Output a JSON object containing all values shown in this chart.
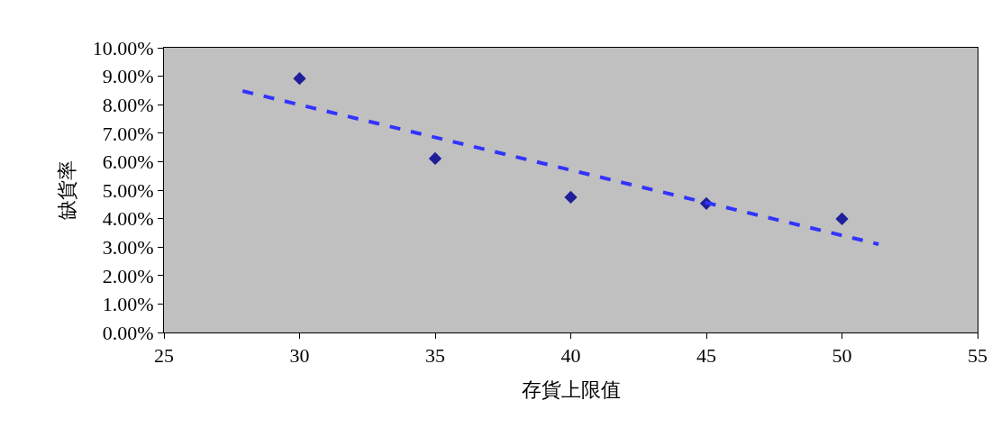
{
  "chart_data": {
    "type": "scatter",
    "xlabel": "存貨上限值",
    "ylabel": "缺貨率",
    "xlim": [
      25,
      55
    ],
    "xticks": [
      25,
      30,
      35,
      40,
      45,
      50,
      55
    ],
    "ylim": [
      0,
      10
    ],
    "yticks": [
      {
        "value": 0,
        "label": "0.00%"
      },
      {
        "value": 1,
        "label": "1.00%"
      },
      {
        "value": 2,
        "label": "2.00%"
      },
      {
        "value": 3,
        "label": "3.00%"
      },
      {
        "value": 4,
        "label": "4.00%"
      },
      {
        "value": 5,
        "label": "5.00%"
      },
      {
        "value": 6,
        "label": "6.00%"
      },
      {
        "value": 7,
        "label": "7.00%"
      },
      {
        "value": 8,
        "label": "8.00%"
      },
      {
        "value": 9,
        "label": "9.00%"
      },
      {
        "value": 10,
        "label": "10.00%"
      }
    ],
    "grid": false,
    "series": [
      {
        "type": "scatter",
        "marker": "diamond",
        "color": "#1f1f99",
        "x": [
          30,
          35,
          40,
          45,
          50
        ],
        "values": [
          8.92,
          6.11,
          4.75,
          4.53,
          3.99
        ]
      },
      {
        "type": "line",
        "line_style": "dashed",
        "marker": "none",
        "color": "#3333ff",
        "x": [
          27.9,
          51.35
        ],
        "values": [
          8.48,
          3.1
        ]
      }
    ]
  }
}
